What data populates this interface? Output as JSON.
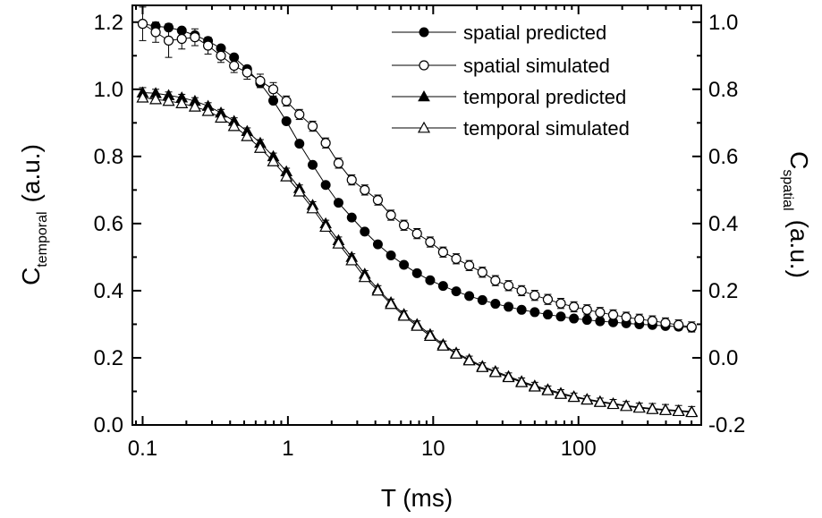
{
  "chart_data": {
    "type": "scatter",
    "xlabel": "T (ms)",
    "xscale": "log",
    "xlim": [
      0.085,
      700
    ],
    "x_ticks": [
      0.1,
      1,
      10,
      100
    ],
    "x_tick_labels": [
      "0.1",
      "1",
      "10",
      "100"
    ],
    "ylabel_left": {
      "main": "C",
      "sub": "temporal",
      "unit": "(a.u.)"
    },
    "ylim_left": [
      0.0,
      1.25
    ],
    "y_ticks_left": [
      0.0,
      0.2,
      0.4,
      0.6,
      0.8,
      1.0,
      1.2
    ],
    "y_tick_labels_left": [
      "0.0",
      "0.2",
      "0.4",
      "0.6",
      "0.8",
      "1.0",
      "1.2"
    ],
    "ylabel_right": {
      "main": "C",
      "sub": "spatial",
      "unit": "(a.u.)"
    },
    "ylim_right": [
      -0.2,
      1.05
    ],
    "y_ticks_right": [
      -0.2,
      0.0,
      0.2,
      0.4,
      0.6,
      0.8,
      1.0
    ],
    "y_tick_labels_right": [
      "-0.2",
      "0.0",
      "0.2",
      "0.4",
      "0.6",
      "0.8",
      "1.0"
    ],
    "legend_position": "top-right",
    "grid": false,
    "x": [
      0.1,
      0.123,
      0.151,
      0.186,
      0.229,
      0.282,
      0.346,
      0.426,
      0.524,
      0.645,
      0.793,
      0.976,
      1.2,
      1.48,
      1.82,
      2.23,
      2.75,
      3.38,
      4.16,
      5.12,
      6.29,
      7.74,
      9.53,
      11.7,
      14.4,
      17.7,
      21.8,
      26.8,
      33.0,
      40.6,
      50.0,
      61.5,
      75.6,
      93.0,
      114.5,
      140.8,
      173.3,
      213.2,
      262.3,
      322.8,
      397.1,
      488.6,
      601.2
    ],
    "series": [
      {
        "name": "spatial predicted",
        "axis": "right",
        "marker": "filled-circle",
        "values": [
          0.995,
          0.988,
          0.984,
          0.975,
          0.961,
          0.944,
          0.922,
          0.895,
          0.86,
          0.818,
          0.766,
          0.705,
          0.638,
          0.575,
          0.515,
          0.462,
          0.418,
          0.376,
          0.338,
          0.305,
          0.277,
          0.252,
          0.231,
          0.214,
          0.198,
          0.184,
          0.172,
          0.161,
          0.152,
          0.143,
          0.136,
          0.129,
          0.123,
          0.117,
          0.113,
          0.109,
          0.106,
          0.103,
          0.1,
          0.098,
          0.095,
          0.093,
          0.09
        ]
      },
      {
        "name": "spatial simulated",
        "axis": "right",
        "marker": "open-circle",
        "values": [
          0.995,
          0.97,
          0.945,
          0.95,
          0.955,
          0.93,
          0.9,
          0.87,
          0.85,
          0.825,
          0.8,
          0.765,
          0.725,
          0.69,
          0.64,
          0.58,
          0.53,
          0.5,
          0.47,
          0.425,
          0.395,
          0.37,
          0.345,
          0.315,
          0.295,
          0.275,
          0.255,
          0.23,
          0.215,
          0.2,
          0.186,
          0.174,
          0.162,
          0.152,
          0.143,
          0.135,
          0.128,
          0.121,
          0.115,
          0.11,
          0.104,
          0.098,
          0.092
        ],
        "error": [
          0.05,
          0.03,
          0.05,
          0.03,
          0.025,
          0.025,
          0.02,
          0.02,
          0.02,
          0.02,
          0.02,
          0.015,
          0.015,
          0.015,
          0.015,
          0.015,
          0.015,
          0.015,
          0.015,
          0.015,
          0.015,
          0.015,
          0.015,
          0.015,
          0.015,
          0.015,
          0.015,
          0.015,
          0.015,
          0.015,
          0.015,
          0.015,
          0.015,
          0.015,
          0.015,
          0.015,
          0.015,
          0.015,
          0.015,
          0.015,
          0.015,
          0.015,
          0.015
        ]
      },
      {
        "name": "temporal predicted",
        "axis": "left",
        "marker": "filled-triangle",
        "values": [
          0.99,
          0.988,
          0.982,
          0.975,
          0.965,
          0.95,
          0.93,
          0.905,
          0.875,
          0.84,
          0.8,
          0.755,
          0.705,
          0.655,
          0.6,
          0.55,
          0.5,
          0.45,
          0.405,
          0.365,
          0.33,
          0.3,
          0.27,
          0.24,
          0.215,
          0.195,
          0.175,
          0.16,
          0.145,
          0.13,
          0.117,
          0.106,
          0.095,
          0.085,
          0.077,
          0.07,
          0.064,
          0.058,
          0.053,
          0.049,
          0.046,
          0.043,
          0.04
        ],
        "error": [
          0.015,
          0.012,
          0.01,
          0.01,
          0.01,
          0.01,
          0.01,
          0.01,
          0.01,
          0.01,
          0.01,
          0.01,
          0.01,
          0.01,
          0.01,
          0.01,
          0.01,
          0.01,
          0.01,
          0.01,
          0.01,
          0.01,
          0.01,
          0.01,
          0.01,
          0.01,
          0.01,
          0.01,
          0.01,
          0.01,
          0.01,
          0.01,
          0.01,
          0.01,
          0.01,
          0.01,
          0.012,
          0.012,
          0.012,
          0.015,
          0.015,
          0.015,
          0.015
        ]
      },
      {
        "name": "temporal simulated",
        "axis": "left",
        "marker": "open-triangle",
        "values": [
          0.975,
          0.97,
          0.965,
          0.958,
          0.948,
          0.935,
          0.915,
          0.89,
          0.86,
          0.825,
          0.785,
          0.74,
          0.695,
          0.645,
          0.59,
          0.54,
          0.49,
          0.44,
          0.4,
          0.36,
          0.325,
          0.295,
          0.265,
          0.236,
          0.212,
          0.192,
          0.172,
          0.157,
          0.142,
          0.127,
          0.114,
          0.103,
          0.092,
          0.083,
          0.075,
          0.068,
          0.062,
          0.056,
          0.051,
          0.047,
          0.044,
          0.041,
          0.038
        ]
      }
    ]
  }
}
